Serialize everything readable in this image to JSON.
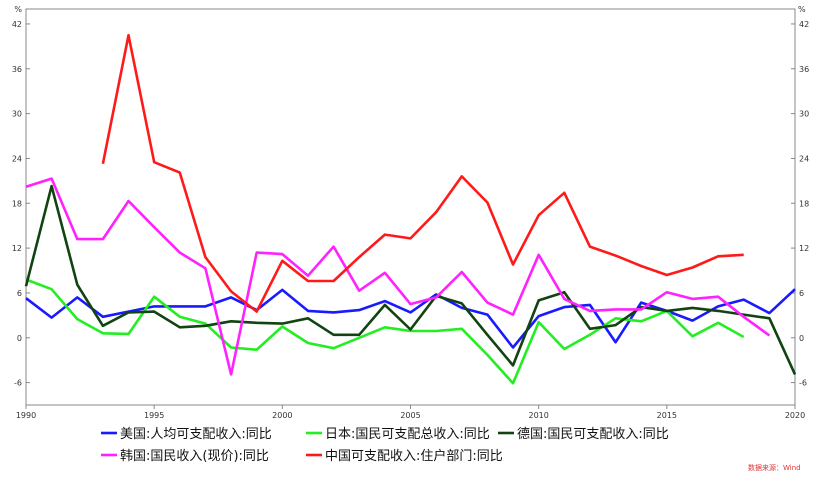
{
  "chart_data": {
    "type": "line",
    "unit_left": "%",
    "unit_right": "%",
    "xlim": [
      1990,
      2020
    ],
    "ylim": [
      -9,
      44
    ],
    "x_ticks": [
      1990,
      1995,
      2000,
      2005,
      2010,
      2015,
      2020
    ],
    "y_ticks": [
      -6,
      0,
      6,
      12,
      18,
      24,
      30,
      36,
      42
    ],
    "grid": false,
    "legend_position": "bottom",
    "source": "数据来源：Wind",
    "series": [
      {
        "name": "美国:人均可支配收入:同比",
        "color": "#1a1aff",
        "x": [
          1990,
          1991,
          1992,
          1993,
          1994,
          1995,
          1996,
          1997,
          1998,
          1999,
          2000,
          2001,
          2002,
          2003,
          2004,
          2005,
          2006,
          2007,
          2008,
          2009,
          2010,
          2011,
          2012,
          2013,
          2014,
          2015,
          2016,
          2017,
          2018,
          2019,
          2020
        ],
        "values": [
          5.3,
          2.7,
          5.4,
          2.8,
          3.5,
          4.2,
          4.2,
          4.2,
          5.4,
          3.7,
          6.4,
          3.6,
          3.4,
          3.7,
          4.9,
          3.4,
          5.8,
          4.0,
          3.1,
          -1.3,
          2.9,
          4.1,
          4.4,
          -0.6,
          4.7,
          3.6,
          2.3,
          4.2,
          5.1,
          3.3,
          6.5
        ]
      },
      {
        "name": "日本:国民可支配总收入:同比",
        "color": "#22ee22",
        "x": [
          1990,
          1991,
          1992,
          1993,
          1994,
          1995,
          1996,
          1997,
          1998,
          1999,
          2000,
          2001,
          2002,
          2003,
          2004,
          2005,
          2006,
          2007,
          2008,
          2009,
          2010,
          2011,
          2012,
          2013,
          2014,
          2015,
          2016,
          2017,
          2018
        ],
        "values": [
          7.8,
          6.5,
          2.5,
          0.6,
          0.5,
          5.5,
          2.8,
          1.9,
          -1.3,
          -1.6,
          1.5,
          -0.7,
          -1.4,
          0.0,
          1.4,
          0.9,
          0.9,
          1.2,
          -2.3,
          -6.1,
          2.1,
          -1.5,
          0.4,
          2.6,
          2.2,
          3.6,
          0.2,
          2.0,
          0.1
        ]
      },
      {
        "name": "德国:国民可支配收入:同比",
        "color": "#114411",
        "x": [
          1990,
          1991,
          1992,
          1993,
          1994,
          1995,
          1996,
          1997,
          1998,
          1999,
          2000,
          2001,
          2002,
          2003,
          2004,
          2005,
          2006,
          2007,
          2008,
          2009,
          2010,
          2011,
          2012,
          2013,
          2014,
          2015,
          2016,
          2017,
          2018,
          2019,
          2020
        ],
        "values": [
          6.9,
          20.3,
          7.1,
          1.6,
          3.4,
          3.5,
          1.4,
          1.6,
          2.2,
          2.0,
          1.9,
          2.6,
          0.4,
          0.4,
          4.4,
          1.1,
          5.6,
          4.6,
          0.4,
          -3.7,
          5.0,
          6.1,
          1.2,
          1.7,
          4.1,
          3.6,
          4.0,
          3.6,
          3.1,
          2.6,
          -4.9
        ]
      },
      {
        "name": "韩国:国民收入(现价):同比",
        "color": "#ff22ff",
        "x": [
          1990,
          1991,
          1992,
          1993,
          1994,
          1995,
          1996,
          1997,
          1998,
          1999,
          2000,
          2001,
          2002,
          2003,
          2004,
          2005,
          2006,
          2007,
          2008,
          2009,
          2010,
          2011,
          2012,
          2013,
          2014,
          2015,
          2016,
          2017,
          2018,
          2019
        ],
        "values": [
          20.2,
          21.3,
          13.2,
          13.2,
          18.3,
          14.8,
          11.4,
          9.3,
          -4.9,
          11.4,
          11.2,
          8.3,
          12.2,
          6.3,
          8.7,
          4.5,
          5.4,
          8.8,
          4.7,
          3.1,
          11.1,
          5.2,
          3.6,
          3.8,
          3.8,
          6.1,
          5.2,
          5.5,
          2.8,
          0.3
        ]
      },
      {
        "name": "中国可支配收入:住户部门:同比",
        "color": "#ff1a1a",
        "x": [
          1993,
          1994,
          1995,
          1996,
          1997,
          1998,
          1999,
          2000,
          2001,
          2002,
          2003,
          2004,
          2005,
          2006,
          2007,
          2008,
          2009,
          2010,
          2011,
          2012,
          2013,
          2014,
          2015,
          2016,
          2017,
          2018
        ],
        "values": [
          23.3,
          40.5,
          23.5,
          22.1,
          10.8,
          6.2,
          3.5,
          10.3,
          7.6,
          7.6,
          10.8,
          13.8,
          13.3,
          16.8,
          21.6,
          18.1,
          9.8,
          16.4,
          19.4,
          12.2,
          11.0,
          9.6,
          8.4,
          9.4,
          10.9,
          11.1
        ]
      }
    ]
  }
}
